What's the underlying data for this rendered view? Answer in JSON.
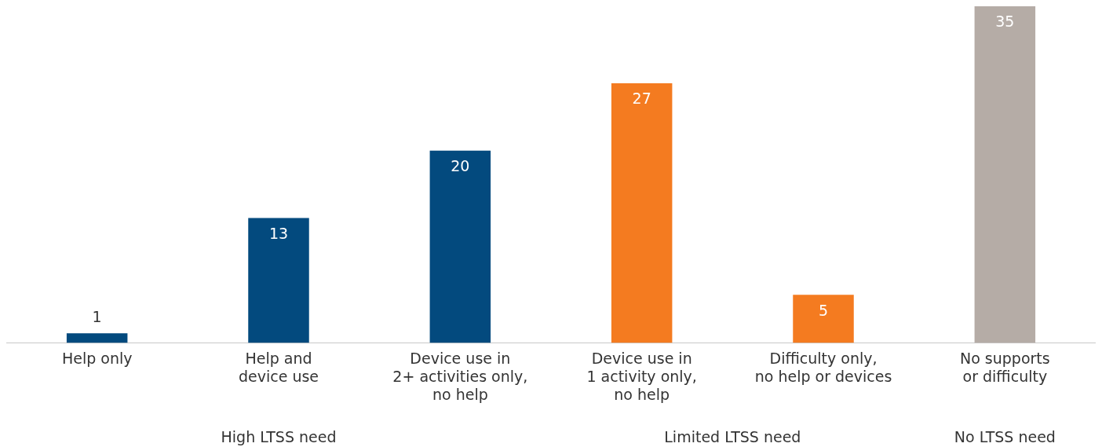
{
  "chart_data": {
    "type": "bar",
    "categories": [
      "Help only",
      "Help and\ndevice use",
      "Device use in\n2+ activities only,\nno help",
      "Device use in\n1 activity only,\nno help",
      "Difficulty only,\nno help or devices",
      "No supports\nor difficulty"
    ],
    "values": [
      1,
      13,
      20,
      27,
      5,
      35
    ],
    "colors": [
      "#034a7e",
      "#034a7e",
      "#034a7e",
      "#f47b20",
      "#f47b20",
      "#b5aca6"
    ],
    "data_labels": true,
    "grid": false,
    "legend": false,
    "annotations": [
      "High LTSS need",
      "Limited LTSS need",
      "No LTSS need"
    ]
  }
}
